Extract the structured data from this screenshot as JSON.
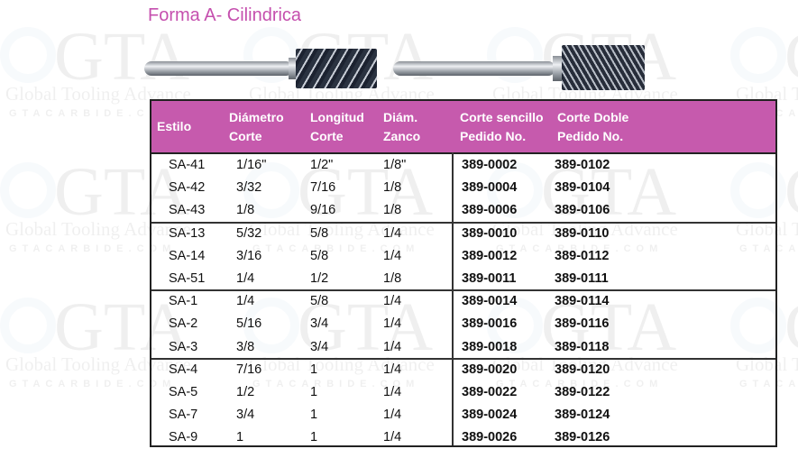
{
  "title": "Forma A- Cilindrica",
  "watermark": {
    "logo_text": "GTA",
    "tagline": "Global Tooling Advance",
    "url": "GTACARBIDE.COM"
  },
  "colors": {
    "header_bg": "#c65aad",
    "title": "#c54fae"
  },
  "images": [
    {
      "name": "single-cut-cylindrical-burr",
      "description_label": "Corte sencillo"
    },
    {
      "name": "double-cut-cylindrical-burr",
      "description_label": "Corte Doble"
    }
  ],
  "table": {
    "headers": [
      {
        "line1": "Estilo",
        "line2": ""
      },
      {
        "line1": "Diámetro",
        "line2": "Corte"
      },
      {
        "line1": "Longitud",
        "line2": "Corte"
      },
      {
        "line1": "Diám.",
        "line2": "Zanco"
      },
      {
        "line1": "Corte sencillo",
        "line2": "Pedido No."
      },
      {
        "line1": "Corte Doble",
        "line2": "Pedido No."
      }
    ],
    "rows": [
      [
        "SA-41",
        "1/16\"",
        "1/2\"",
        "1/8\"",
        "389-0002",
        "389-0102"
      ],
      [
        "SA-42",
        "3/32",
        "7/16",
        "1/8",
        "389-0004",
        "389-0104"
      ],
      [
        "SA-43",
        "1/8",
        "9/16",
        "1/8",
        "389-0006",
        "389-0106"
      ],
      [
        "SA-13",
        "5/32",
        "5/8",
        "1/4",
        "389-0010",
        "389-0110"
      ],
      [
        "SA-14",
        "3/16",
        "5/8",
        "1/4",
        "389-0012",
        "389-0112"
      ],
      [
        "SA-51",
        "1/4",
        "1/2",
        "1/8",
        "389-0011",
        "389-0111"
      ],
      [
        "SA-1",
        "1/4",
        "5/8",
        "1/4",
        "389-0014",
        "389-0114"
      ],
      [
        "SA-2",
        "5/16",
        "3/4",
        "1/4",
        "389-0016",
        "389-0116"
      ],
      [
        "SA-3",
        "3/8",
        "3/4",
        "1/4",
        "389-0018",
        "389-0118"
      ],
      [
        "SA-4",
        "7/16",
        "1",
        "1/4",
        "389-0020",
        "389-0120"
      ],
      [
        "SA-5",
        "1/2",
        "1",
        "1/4",
        "389-0022",
        "389-0122"
      ],
      [
        "SA-7",
        "3/4",
        "1",
        "1/4",
        "389-0024",
        "389-0124"
      ],
      [
        "SA-9",
        "1",
        "1",
        "1/4",
        "389-0026",
        "389-0126"
      ]
    ]
  }
}
